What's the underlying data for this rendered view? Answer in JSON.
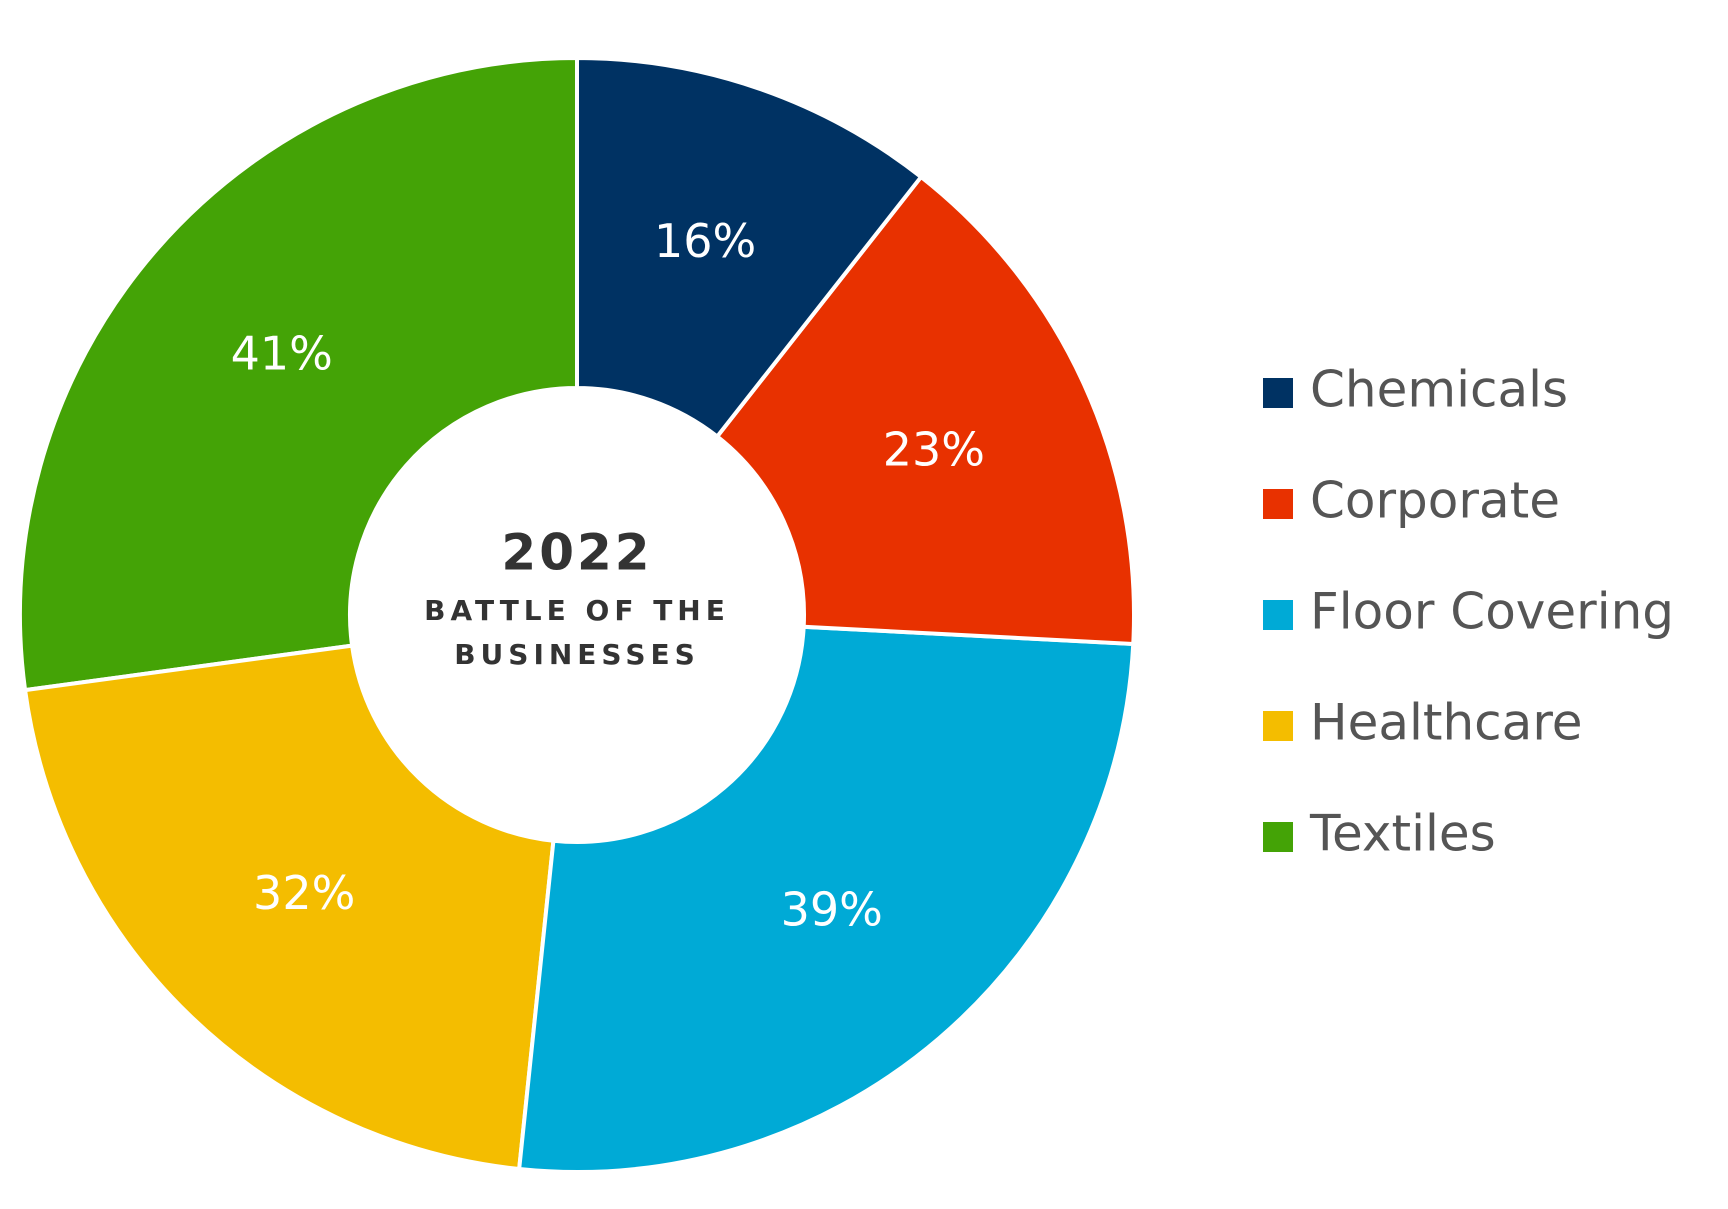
{
  "chart_data": {
    "type": "donut",
    "title": "2022",
    "subtitle": [
      "BATTLE OF THE",
      "BUSINESSES"
    ],
    "categories": [
      "Chemicals",
      "Corporate",
      "Floor Covering",
      "Healthcare",
      "Textiles"
    ],
    "values": [
      16,
      23,
      39,
      32,
      41
    ],
    "value_labels": [
      "16%",
      "23%",
      "39%",
      "32%",
      "41%"
    ],
    "colors": [
      "#003263",
      "#e83100",
      "#00aad6",
      "#f4bd00",
      "#44a306"
    ],
    "legend": "right"
  }
}
